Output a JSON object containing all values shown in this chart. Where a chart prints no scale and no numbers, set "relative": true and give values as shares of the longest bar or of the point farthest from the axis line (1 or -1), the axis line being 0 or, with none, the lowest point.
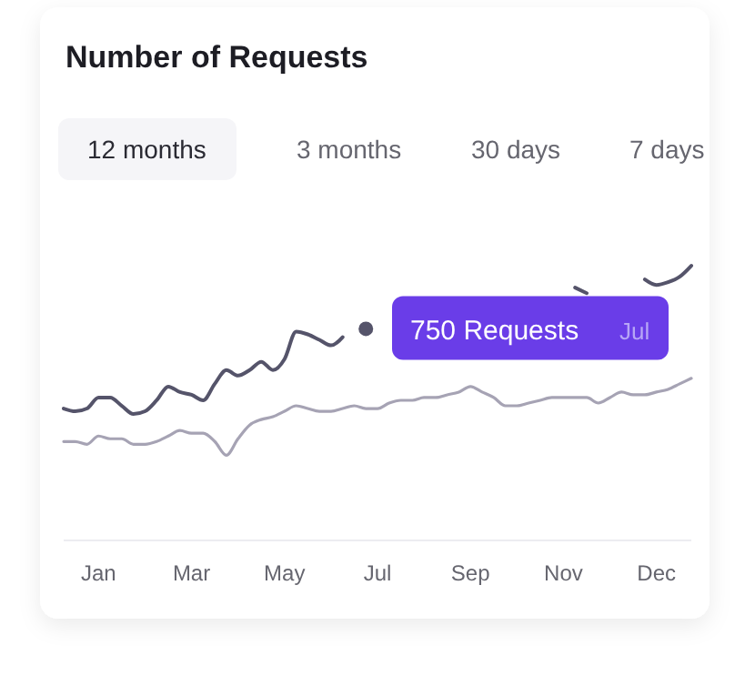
{
  "chart_data": {
    "type": "line",
    "title": "Number of Requests",
    "relative": true,
    "categories": [
      null,
      null,
      null,
      "Jan",
      null,
      null,
      null,
      null,
      null,
      null,
      null,
      "Mar",
      null,
      null,
      null,
      null,
      null,
      null,
      null,
      "May",
      null,
      null,
      null,
      null,
      null,
      null,
      null,
      "Jul",
      null,
      null,
      null,
      null,
      null,
      null,
      null,
      "Sep",
      null,
      null,
      null,
      null,
      null,
      null,
      null,
      "Nov",
      null,
      null,
      null,
      null,
      null,
      null,
      null,
      "Dec",
      null,
      null,
      null
    ],
    "series": [
      {
        "color": "#55546a",
        "values": [
          0.48,
          0.47,
          0.48,
          0.52,
          0.52,
          0.49,
          0.46,
          0.47,
          0.51,
          0.56,
          0.54,
          0.53,
          0.51,
          0.57,
          0.62,
          0.6,
          0.62,
          0.65,
          0.62,
          0.66,
          0.76,
          0.75,
          0.73,
          0.71,
          0.74,
          null,
          null,
          null,
          null,
          null,
          null,
          null,
          null,
          null,
          null,
          null,
          null,
          null,
          null,
          null,
          null,
          null,
          null,
          null,
          0.92,
          0.9,
          null,
          null,
          null,
          null,
          0.95,
          0.93,
          0.94,
          0.96,
          1.0
        ]
      },
      {
        "color": "#a6a3b4",
        "values": [
          0.36,
          0.36,
          0.35,
          0.38,
          0.37,
          0.37,
          0.35,
          0.35,
          0.36,
          0.38,
          0.4,
          0.39,
          0.39,
          0.36,
          0.31,
          0.37,
          0.42,
          0.44,
          0.45,
          0.47,
          0.49,
          0.48,
          0.47,
          0.47,
          0.48,
          0.49,
          0.48,
          0.48,
          0.5,
          0.51,
          0.51,
          0.52,
          0.52,
          0.53,
          0.54,
          0.56,
          0.54,
          0.52,
          0.49,
          0.49,
          0.5,
          0.51,
          0.52,
          0.52,
          0.52,
          0.52,
          0.5,
          0.52,
          0.54,
          0.53,
          0.53,
          0.54,
          0.55,
          0.57,
          0.59
        ]
      },
      {
        "type": "scatter",
        "color": "#55546a",
        "values": [
          null,
          null,
          null,
          null,
          null,
          null,
          null,
          null,
          null,
          null,
          null,
          null,
          null,
          null,
          null,
          null,
          null,
          null,
          null,
          null,
          null,
          null,
          null,
          null,
          null,
          null,
          0.77,
          null,
          null,
          null,
          null,
          null,
          null,
          null,
          null,
          null,
          null,
          null,
          null,
          null,
          null,
          null,
          null,
          null,
          null,
          null,
          null,
          null,
          null,
          null,
          null,
          null,
          null,
          null,
          null
        ]
      }
    ],
    "annotations": [
      {
        "text": "750 Requests",
        "x": "Jul",
        "y": 0.77
      },
      "Jul",
      "12 months",
      "3 months",
      "30 days",
      "7 days"
    ]
  }
}
